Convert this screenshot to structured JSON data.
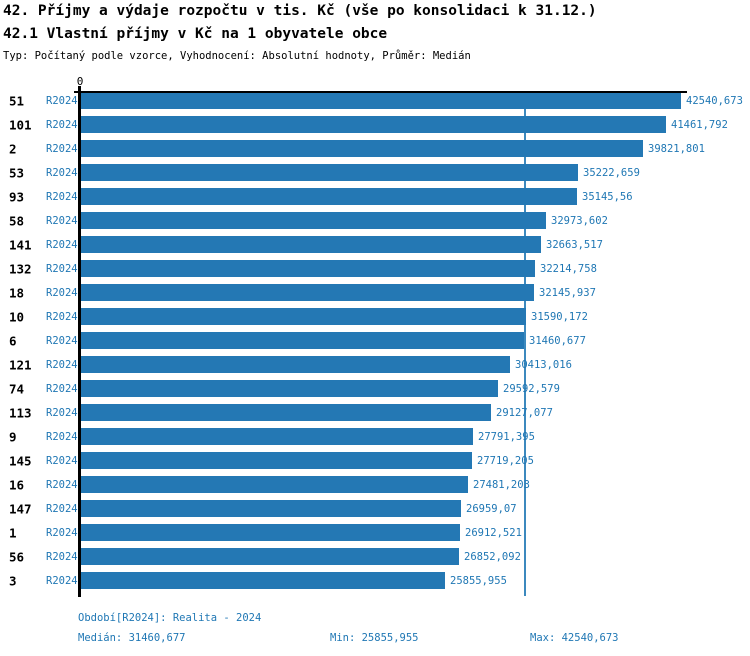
{
  "header": {
    "title": "42. Příjmy a výdaje rozpočtu v tis. Kč (vše po konsolidaci k 31.12.)",
    "subtitle": "42.1 Vlastní příjmy v Kč na 1 obyvatele obce",
    "meta": "Typ: Počítaný podle vzorce, Vyhodnocení: Absolutní hodnoty, Průměr: Medián"
  },
  "chart_data": {
    "type": "bar",
    "orientation": "horizontal",
    "series_label": "R2024",
    "categories": [
      "51",
      "101",
      "2",
      "53",
      "93",
      "58",
      "141",
      "132",
      "18",
      "10",
      "6",
      "121",
      "74",
      "113",
      "9",
      "145",
      "16",
      "147",
      "1",
      "56",
      "3"
    ],
    "values": [
      42540.673,
      41461.792,
      39821.801,
      35222.659,
      35145.56,
      32973.602,
      32663.517,
      32214.758,
      32145.937,
      31590.172,
      31460.677,
      30413.016,
      29592.579,
      29127.077,
      27791.395,
      27719.205,
      27481.203,
      26959.07,
      26912.521,
      26852.092,
      25855.955
    ],
    "value_labels": [
      "42540,673",
      "41461,792",
      "39821,801",
      "35222,659",
      "35145,56",
      "32973,602",
      "32663,517",
      "32214,758",
      "32145,937",
      "31590,172",
      "31460,677",
      "30413,016",
      "29592,579",
      "29127,077",
      "27791,395",
      "27719,205",
      "27481,203",
      "26959,07",
      "26912,521",
      "26852,092",
      "25855,955"
    ],
    "axis": {
      "zero_label": "0",
      "min": 0,
      "max": 42540.673,
      "grid": false
    },
    "median_value": 31460.677,
    "legend_position": "none"
  },
  "footer": {
    "period": "Období[R2024]: Realita - 2024",
    "median": "Medián: 31460,677",
    "min": "Min: 25855,955",
    "max": "Max: 42540,673"
  },
  "colors": {
    "bar": "#2478B4",
    "label_blue": "#1F77B4",
    "median_line": "#3C89BE",
    "axis": "#000000"
  }
}
